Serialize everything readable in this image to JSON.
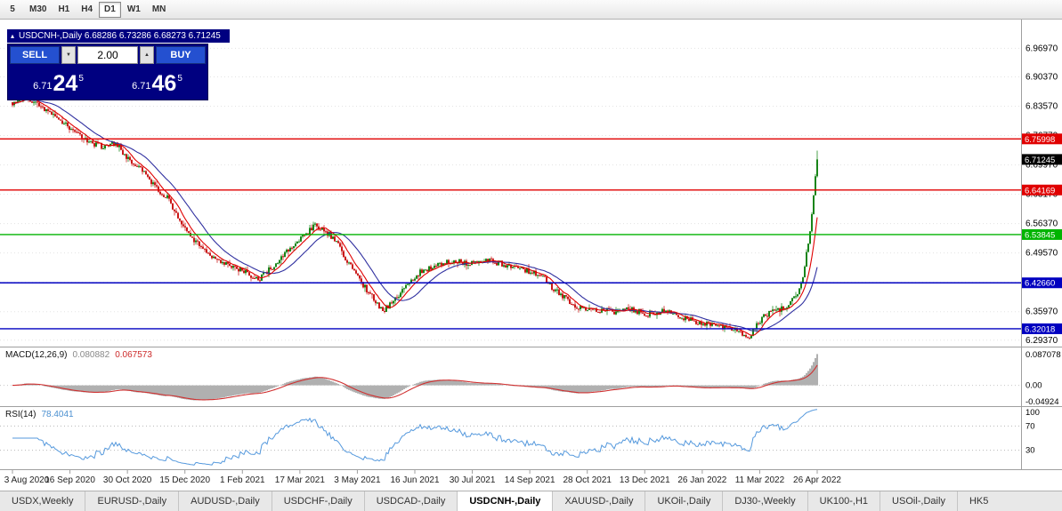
{
  "icons": {
    "collapse_icon": "▴",
    "volume_down_icon": "▼",
    "volume_up_icon": "▲"
  },
  "toolbar": {
    "timeframes": [
      {
        "label": "5",
        "active": false
      },
      {
        "label": "M30",
        "active": false
      },
      {
        "label": "H1",
        "active": false
      },
      {
        "label": "H4",
        "active": false
      },
      {
        "label": "D1",
        "active": true
      },
      {
        "label": "W1",
        "active": false
      },
      {
        "label": "MN",
        "active": false
      }
    ]
  },
  "chart_header": {
    "title": "USDCNH-,Daily 6.68286 6.73286 6.68273 6.71245"
  },
  "trade_panel": {
    "sell_label": "SELL",
    "buy_label": "BUY",
    "volume": "2.00",
    "sell_price": {
      "prefix": "6.71",
      "big": "24",
      "sup": "5"
    },
    "buy_price": {
      "prefix": "6.71",
      "big": "46",
      "sup": "5"
    }
  },
  "indicators": {
    "macd": {
      "name": "MACD(12,26,9)",
      "main_value": "0.080882",
      "signal_value": "0.067573",
      "scale_top": "0.087078",
      "scale_zero": "0.00",
      "scale_bottom": "-0.04924"
    },
    "rsi": {
      "name": "RSI(14)",
      "value": "78.4041",
      "scale": [
        "100",
        "70",
        "30"
      ]
    }
  },
  "tabs": [
    {
      "label": "USDX,Weekly",
      "active": false
    },
    {
      "label": "EURUSD-,Daily",
      "active": false
    },
    {
      "label": "AUDUSD-,Daily",
      "active": false
    },
    {
      "label": "USDCHF-,Daily",
      "active": false
    },
    {
      "label": "USDCAD-,Daily",
      "active": false
    },
    {
      "label": "USDCNH-,Daily",
      "active": true
    },
    {
      "label": "XAUUSD-,Daily",
      "active": false
    },
    {
      "label": "UKOil-,Daily",
      "active": false
    },
    {
      "label": "DJ30-,Weekly",
      "active": false
    },
    {
      "label": "UK100-,H1",
      "active": false
    },
    {
      "label": "USOil-,Daily",
      "active": false
    },
    {
      "label": "HK5",
      "active": false
    }
  ],
  "chart_data": {
    "type": "candlestick",
    "title": "USDCNH-,Daily",
    "symbol": "USDCNH",
    "timeframe": "Daily",
    "ohlc_display": {
      "open": 6.68286,
      "high": 6.73286,
      "low": 6.68273,
      "close": 6.71245
    },
    "x_labels": [
      "3 Aug 2020",
      "16 Sep 2020",
      "30 Oct 2020",
      "15 Dec 2020",
      "1 Feb 2021",
      "17 Mar 2021",
      "3 May 2021",
      "16 Jun 2021",
      "30 Jul 2021",
      "14 Sep 2021",
      "28 Oct 2021",
      "13 Dec 2021",
      "26 Jan 2022",
      "11 Mar 2022",
      "26 Apr 2022"
    ],
    "y_axis_ticks": [
      "6.96970",
      "6.90370",
      "6.83570",
      "6.76770",
      "6.69970",
      "6.63170",
      "6.56370",
      "6.49570",
      "6.42770",
      "6.35970",
      "6.29370"
    ],
    "y_range": [
      6.283,
      7.02
    ],
    "horizontal_lines": [
      {
        "price": 6.75998,
        "label": "6.75998",
        "color": "#e00000"
      },
      {
        "price": 6.64169,
        "label": "6.64169",
        "color": "#e00000"
      },
      {
        "price": 6.53845,
        "label": "6.53845",
        "color": "#00b400"
      },
      {
        "price": 6.4266,
        "label": "6.42660",
        "color": "#0000c0"
      },
      {
        "price": 6.32018,
        "label": "6.32018",
        "color": "#0000c0"
      }
    ],
    "current_price": {
      "value": 6.71245,
      "label": "6.71245",
      "color": "#000000"
    },
    "candle_count": 453,
    "up_color": "#007800",
    "down_color": "#c40000",
    "ma_fast": {
      "period": 8,
      "color": "#e00000"
    },
    "ma_slow": {
      "period": 21,
      "color": "#3030a0"
    },
    "macd_panel": {
      "ylim": [
        -0.04924,
        0.087078
      ],
      "histogram_color": "#b0b0b0",
      "signal_color": "#d03030"
    },
    "rsi_panel": {
      "ylim": [
        0,
        100
      ],
      "levels": [
        70,
        30
      ],
      "line_color": "#5599dd"
    },
    "price_path": [
      [
        0.0,
        6.845
      ],
      [
        0.015,
        6.858
      ],
      [
        0.029,
        6.84
      ],
      [
        0.062,
        6.8
      ],
      [
        0.095,
        6.752
      ],
      [
        0.115,
        6.74
      ],
      [
        0.128,
        6.752
      ],
      [
        0.145,
        6.71
      ],
      [
        0.161,
        6.685
      ],
      [
        0.18,
        6.645
      ],
      [
        0.194,
        6.62
      ],
      [
        0.216,
        6.545
      ],
      [
        0.238,
        6.5
      ],
      [
        0.261,
        6.472
      ],
      [
        0.283,
        6.458
      ],
      [
        0.305,
        6.432
      ],
      [
        0.327,
        6.47
      ],
      [
        0.349,
        6.515
      ],
      [
        0.376,
        6.558
      ],
      [
        0.399,
        6.532
      ],
      [
        0.421,
        6.462
      ],
      [
        0.443,
        6.402
      ],
      [
        0.461,
        6.362
      ],
      [
        0.481,
        6.4
      ],
      [
        0.503,
        6.448
      ],
      [
        0.525,
        6.468
      ],
      [
        0.548,
        6.478
      ],
      [
        0.57,
        6.47
      ],
      [
        0.592,
        6.478
      ],
      [
        0.614,
        6.468
      ],
      [
        0.636,
        6.458
      ],
      [
        0.658,
        6.44
      ],
      [
        0.68,
        6.4
      ],
      [
        0.702,
        6.372
      ],
      [
        0.724,
        6.365
      ],
      [
        0.746,
        6.36
      ],
      [
        0.768,
        6.365
      ],
      [
        0.79,
        6.355
      ],
      [
        0.812,
        6.36
      ],
      [
        0.834,
        6.345
      ],
      [
        0.857,
        6.333
      ],
      [
        0.879,
        6.325
      ],
      [
        0.901,
        6.312
      ],
      [
        0.917,
        6.303
      ],
      [
        0.932,
        6.348
      ],
      [
        0.947,
        6.36
      ],
      [
        0.962,
        6.375
      ],
      [
        0.976,
        6.398
      ],
      [
        0.984,
        6.455
      ],
      [
        0.991,
        6.548
      ],
      [
        0.996,
        6.64
      ],
      [
        1.0,
        6.712
      ]
    ]
  }
}
